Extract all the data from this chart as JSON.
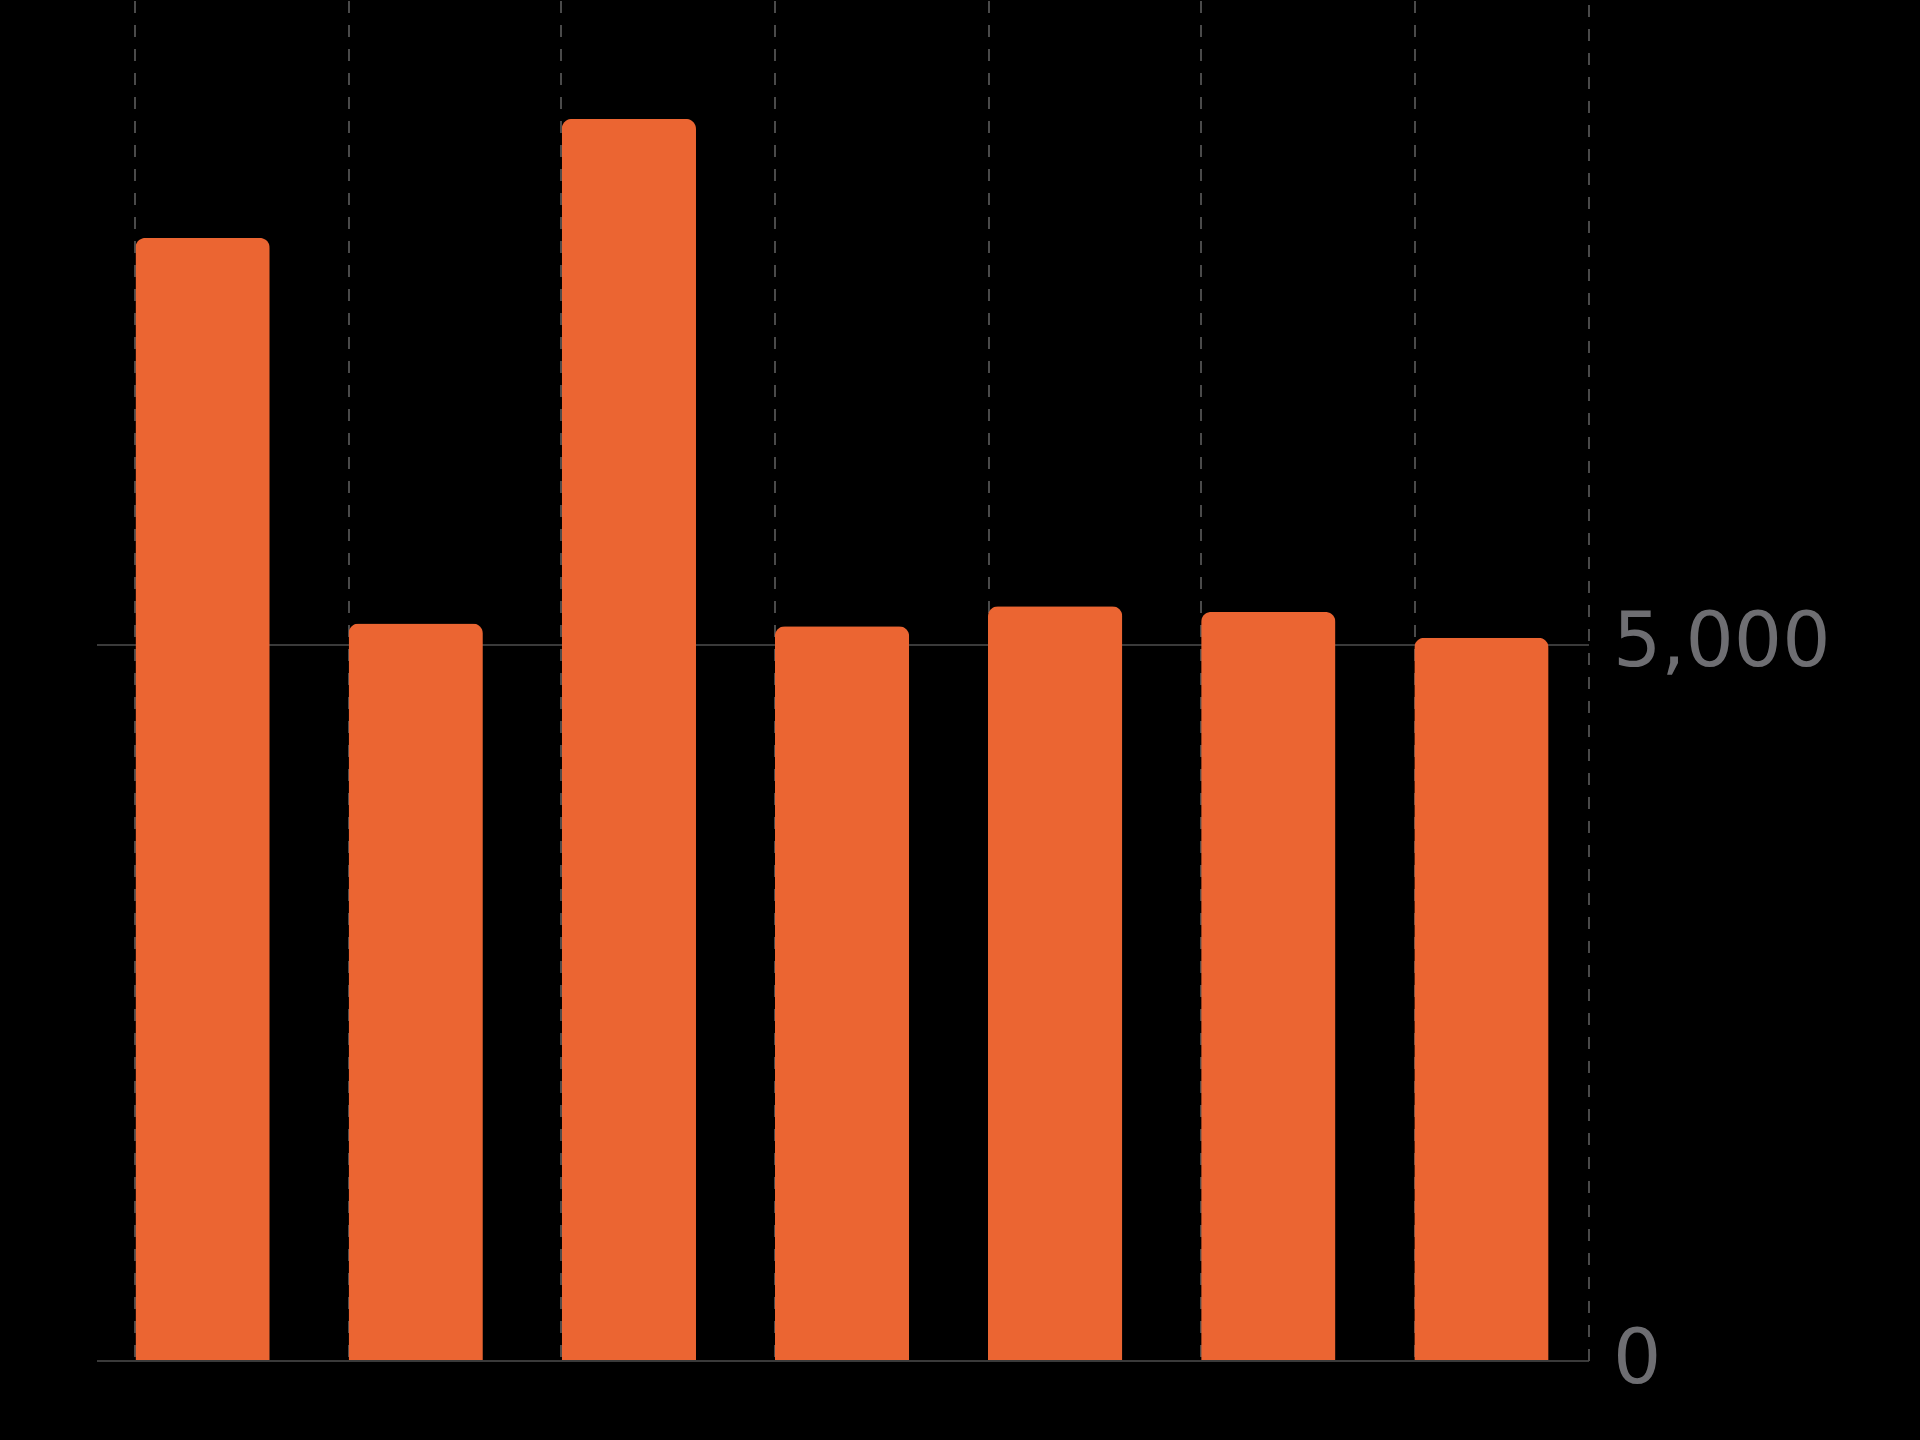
{
  "chart_data": {
    "type": "bar",
    "categories": [
      null,
      null,
      null,
      null,
      null,
      null,
      null
    ],
    "values": [
      7830,
      5140,
      8660,
      5120,
      5260,
      5220,
      5040
    ],
    "color": "#eb6532",
    "ylim": [
      0,
      9490
    ],
    "yticks": [
      0,
      {
        "value": 5000,
        "label": "5,000"
      }
    ],
    "grid": true,
    "tick_labels": "y"
  }
}
